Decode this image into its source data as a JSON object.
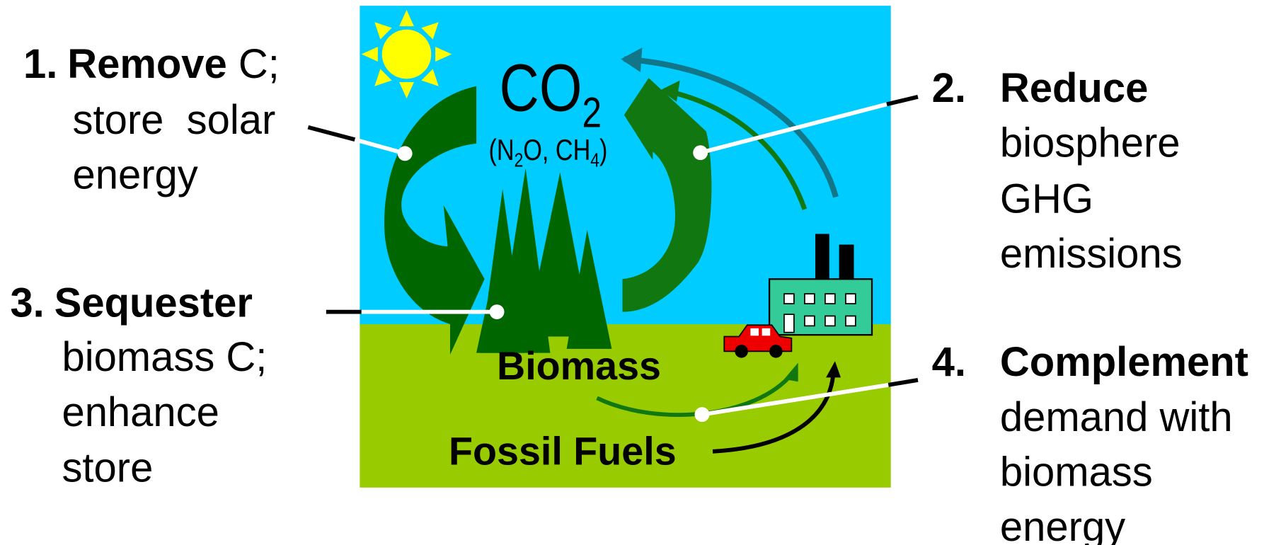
{
  "items": [
    {
      "number": "1.",
      "bold": "Remove",
      "rest": " C;",
      "lines": [
        "store  solar",
        "energy"
      ]
    },
    {
      "number": "2.",
      "bold": "Reduce",
      "lines": [
        "biosphere",
        "GHG",
        "emissions"
      ]
    },
    {
      "number": "3.",
      "bold": "Sequester",
      "lines": [
        "biomass C;",
        "enhance",
        "store"
      ]
    },
    {
      "number": "4.",
      "bold": "Complement",
      "lines": [
        "demand with",
        "biomass",
        "energy"
      ]
    }
  ],
  "diagram": {
    "co2": "CO",
    "co2_sub": "2",
    "other_gases": [
      "(N",
      "2",
      "O, CH",
      "4",
      ")"
    ],
    "biomass": "Biomass",
    "fossil_fuels": "Fossil Fuels"
  }
}
